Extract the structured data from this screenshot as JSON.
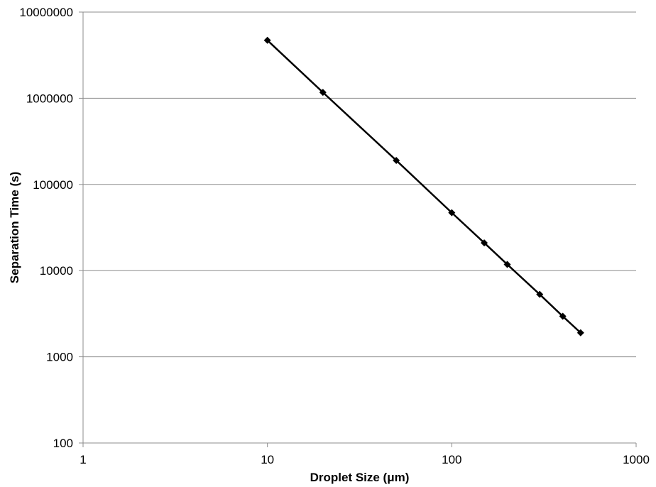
{
  "chart_data": {
    "type": "line",
    "title": "",
    "xlabel": "Droplet Size (μm)",
    "ylabel": "Separation Time (s)",
    "x_scale": "log",
    "y_scale": "log",
    "xlim": [
      1,
      1000
    ],
    "ylim": [
      100,
      10000000
    ],
    "x_ticks": [
      "1",
      "10",
      "100",
      "1000"
    ],
    "y_ticks": [
      "100",
      "1000",
      "10000",
      "100000",
      "1000000",
      "10000000"
    ],
    "grid": "horizontal",
    "legend": "none",
    "marker": "diamond",
    "series": [
      {
        "color": "#000000",
        "x": [
          10,
          20,
          50,
          100,
          150,
          200,
          300,
          400,
          500
        ],
        "y": [
          4700000,
          1170000,
          190000,
          47000,
          21000,
          11800,
          5300,
          2950,
          1900
        ]
      }
    ]
  }
}
